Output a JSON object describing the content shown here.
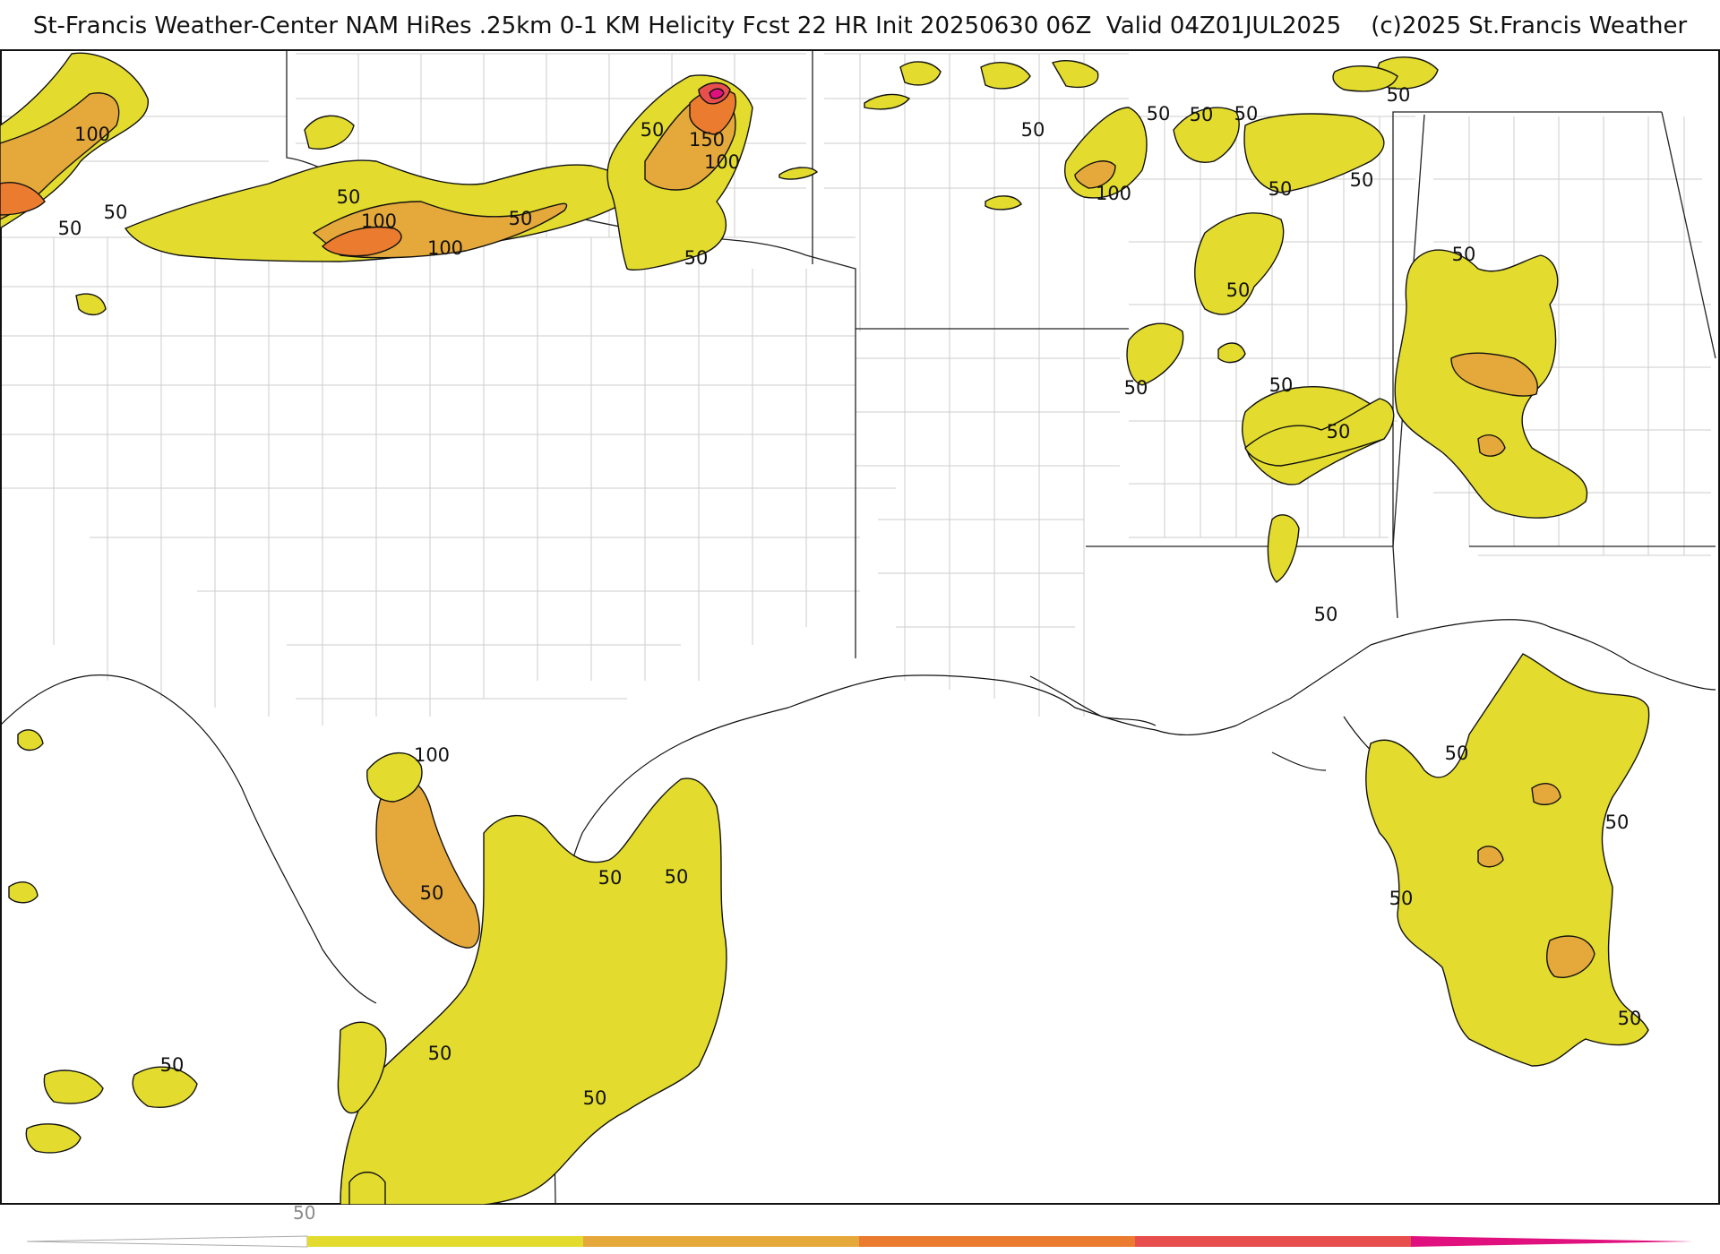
{
  "header": {
    "title": "St-Francis Weather-Center NAM HiRes .25km 0-1 KM Helicity Fcst 22 HR Init 20250630 06Z  Valid 04Z01JUL2025    (c)2025 St.Francis Weather"
  },
  "colors": {
    "level_50": "#e3dc2e",
    "level_100": "#e5a83a",
    "level_150": "#ea7b2f",
    "level_200": "#e84e4e",
    "level_250": "#e0117f",
    "state_border": "#222222",
    "county_border": "#c8c8c8",
    "coastline": "#111111"
  },
  "legend": {
    "tick_label": "50",
    "segments": [
      "#e3dc2e",
      "#e5a83a",
      "#ea7b2f",
      "#e84e4e",
      "#e0117f"
    ]
  },
  "contour_labels": [
    {
      "text": "100"
    },
    {
      "text": "50"
    },
    {
      "text": "50"
    },
    {
      "text": "50"
    },
    {
      "text": "100"
    },
    {
      "text": "100"
    },
    {
      "text": "50"
    },
    {
      "text": "50"
    },
    {
      "text": "150"
    },
    {
      "text": "100"
    },
    {
      "text": "50"
    },
    {
      "text": "50"
    },
    {
      "text": "50"
    },
    {
      "text": "100"
    },
    {
      "text": "50"
    },
    {
      "text": "50"
    },
    {
      "text": "50"
    },
    {
      "text": "50"
    },
    {
      "text": "50"
    },
    {
      "text": "50"
    },
    {
      "text": "50"
    },
    {
      "text": "50"
    },
    {
      "text": "50"
    },
    {
      "text": "50"
    },
    {
      "text": "50"
    },
    {
      "text": "100"
    },
    {
      "text": "50"
    },
    {
      "text": "50"
    },
    {
      "text": "50"
    },
    {
      "text": "50"
    },
    {
      "text": "50"
    },
    {
      "text": "50"
    },
    {
      "text": "50"
    },
    {
      "text": "50"
    },
    {
      "text": "50"
    },
    {
      "text": "50"
    }
  ]
}
